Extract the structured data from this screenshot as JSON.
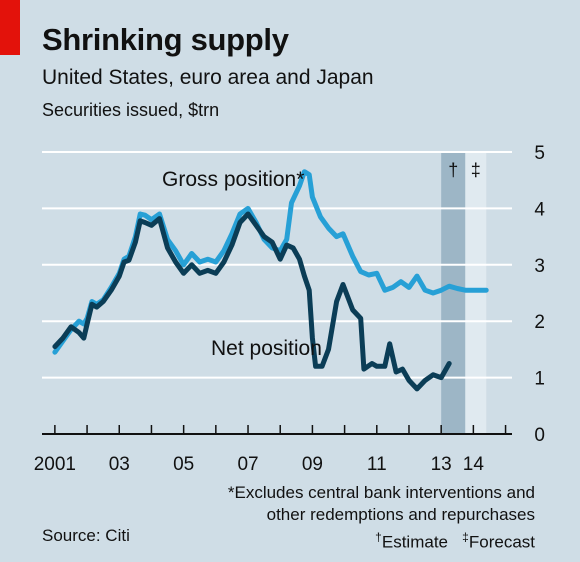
{
  "title": "Shrinking supply",
  "subtitle": "United States, euro area and Japan",
  "unit_line": "Securities issued, $trn",
  "source": "Source: Citi",
  "footnotes": {
    "excludes_line1": "*Excludes central bank interventions and",
    "excludes_line2": "other redemptions and repurchases",
    "estimate_mark": "†",
    "estimate_label": "Estimate",
    "forecast_mark": "‡",
    "forecast_label": "Forecast"
  },
  "colors": {
    "background": "#cfdde6",
    "gross": "#27a0d6",
    "net": "#0b3d56",
    "estimate_band": "#9db6c6",
    "forecast_band": "#e0eaf0",
    "gridline": "#ffffff",
    "accent": "#e3120b"
  },
  "chart_data": {
    "type": "line",
    "title": "Shrinking supply",
    "subtitle": "United States, euro area and Japan",
    "ylabel": "Securities issued, $trn",
    "ylim": [
      0,
      5
    ],
    "yticks": [
      "0",
      "1",
      "2",
      "3",
      "4",
      "5"
    ],
    "xlim": [
      2001,
      2015
    ],
    "xticks": [
      {
        "value": 2001,
        "label": "2001"
      },
      {
        "value": 2003,
        "label": "03"
      },
      {
        "value": 2005,
        "label": "05"
      },
      {
        "value": 2007,
        "label": "07"
      },
      {
        "value": 2009,
        "label": "09"
      },
      {
        "value": 2011,
        "label": "11"
      },
      {
        "value": 2013,
        "label": "13"
      },
      {
        "value": 2014,
        "label": "14"
      }
    ],
    "shaded_periods": [
      {
        "label": "†",
        "start": 2013.0,
        "end": 2013.75
      },
      {
        "label": "‡",
        "start": 2013.75,
        "end": 2014.4
      }
    ],
    "series": [
      {
        "name": "Gross position*",
        "points": [
          [
            2001.0,
            1.45
          ],
          [
            2001.25,
            1.65
          ],
          [
            2001.5,
            1.85
          ],
          [
            2001.75,
            2.0
          ],
          [
            2001.9,
            1.95
          ],
          [
            2002.0,
            2.05
          ],
          [
            2002.15,
            2.35
          ],
          [
            2002.3,
            2.3
          ],
          [
            2002.5,
            2.38
          ],
          [
            2002.75,
            2.6
          ],
          [
            2003.0,
            2.85
          ],
          [
            2003.15,
            3.1
          ],
          [
            2003.3,
            3.15
          ],
          [
            2003.5,
            3.5
          ],
          [
            2003.65,
            3.9
          ],
          [
            2003.8,
            3.88
          ],
          [
            2004.0,
            3.8
          ],
          [
            2004.25,
            3.9
          ],
          [
            2004.5,
            3.45
          ],
          [
            2004.75,
            3.25
          ],
          [
            2005.0,
            3.0
          ],
          [
            2005.25,
            3.2
          ],
          [
            2005.5,
            3.05
          ],
          [
            2005.75,
            3.1
          ],
          [
            2006.0,
            3.05
          ],
          [
            2006.25,
            3.25
          ],
          [
            2006.5,
            3.55
          ],
          [
            2006.75,
            3.9
          ],
          [
            2007.0,
            4.0
          ],
          [
            2007.25,
            3.75
          ],
          [
            2007.5,
            3.45
          ],
          [
            2007.75,
            3.3
          ],
          [
            2008.0,
            3.25
          ],
          [
            2008.2,
            3.45
          ],
          [
            2008.35,
            4.1
          ],
          [
            2008.6,
            4.4
          ],
          [
            2008.75,
            4.65
          ],
          [
            2008.9,
            4.6
          ],
          [
            2009.0,
            4.2
          ],
          [
            2009.25,
            3.85
          ],
          [
            2009.5,
            3.65
          ],
          [
            2009.75,
            3.5
          ],
          [
            2009.95,
            3.55
          ],
          [
            2010.25,
            3.15
          ],
          [
            2010.5,
            2.88
          ],
          [
            2010.75,
            2.82
          ],
          [
            2011.0,
            2.85
          ],
          [
            2011.25,
            2.55
          ],
          [
            2011.5,
            2.6
          ],
          [
            2011.75,
            2.7
          ],
          [
            2012.0,
            2.6
          ],
          [
            2012.25,
            2.8
          ],
          [
            2012.5,
            2.55
          ],
          [
            2012.75,
            2.5
          ],
          [
            2013.0,
            2.55
          ],
          [
            2013.25,
            2.62
          ],
          [
            2013.5,
            2.58
          ],
          [
            2013.75,
            2.55
          ],
          [
            2014.0,
            2.55
          ],
          [
            2014.4,
            2.55
          ]
        ]
      },
      {
        "name": "Net position",
        "points": [
          [
            2001.0,
            1.55
          ],
          [
            2001.25,
            1.7
          ],
          [
            2001.5,
            1.9
          ],
          [
            2001.75,
            1.8
          ],
          [
            2001.9,
            1.7
          ],
          [
            2002.0,
            1.95
          ],
          [
            2002.15,
            2.3
          ],
          [
            2002.3,
            2.25
          ],
          [
            2002.5,
            2.35
          ],
          [
            2002.75,
            2.55
          ],
          [
            2003.0,
            2.8
          ],
          [
            2003.15,
            3.05
          ],
          [
            2003.3,
            3.08
          ],
          [
            2003.5,
            3.4
          ],
          [
            2003.65,
            3.78
          ],
          [
            2003.8,
            3.75
          ],
          [
            2004.0,
            3.7
          ],
          [
            2004.25,
            3.82
          ],
          [
            2004.5,
            3.3
          ],
          [
            2004.75,
            3.05
          ],
          [
            2005.0,
            2.85
          ],
          [
            2005.25,
            3.0
          ],
          [
            2005.5,
            2.85
          ],
          [
            2005.75,
            2.9
          ],
          [
            2006.0,
            2.85
          ],
          [
            2006.25,
            3.05
          ],
          [
            2006.5,
            3.35
          ],
          [
            2006.75,
            3.75
          ],
          [
            2007.0,
            3.9
          ],
          [
            2007.25,
            3.7
          ],
          [
            2007.5,
            3.5
          ],
          [
            2007.75,
            3.4
          ],
          [
            2008.0,
            3.1
          ],
          [
            2008.2,
            3.35
          ],
          [
            2008.4,
            3.3
          ],
          [
            2008.6,
            3.1
          ],
          [
            2008.75,
            2.8
          ],
          [
            2008.9,
            2.55
          ],
          [
            2009.0,
            1.7
          ],
          [
            2009.1,
            1.2
          ],
          [
            2009.3,
            1.2
          ],
          [
            2009.5,
            1.5
          ],
          [
            2009.75,
            2.35
          ],
          [
            2009.95,
            2.65
          ],
          [
            2010.25,
            2.2
          ],
          [
            2010.5,
            2.05
          ],
          [
            2010.6,
            1.15
          ],
          [
            2010.85,
            1.25
          ],
          [
            2011.0,
            1.2
          ],
          [
            2011.25,
            1.2
          ],
          [
            2011.4,
            1.6
          ],
          [
            2011.6,
            1.1
          ],
          [
            2011.8,
            1.15
          ],
          [
            2012.0,
            0.95
          ],
          [
            2012.25,
            0.8
          ],
          [
            2012.5,
            0.95
          ],
          [
            2012.75,
            1.05
          ],
          [
            2013.0,
            1.0
          ],
          [
            2013.25,
            1.25
          ]
        ]
      }
    ],
    "annotations": [
      {
        "text": "Gross position*",
        "series": "Gross position*"
      },
      {
        "text": "Net position",
        "series": "Net position"
      }
    ]
  }
}
